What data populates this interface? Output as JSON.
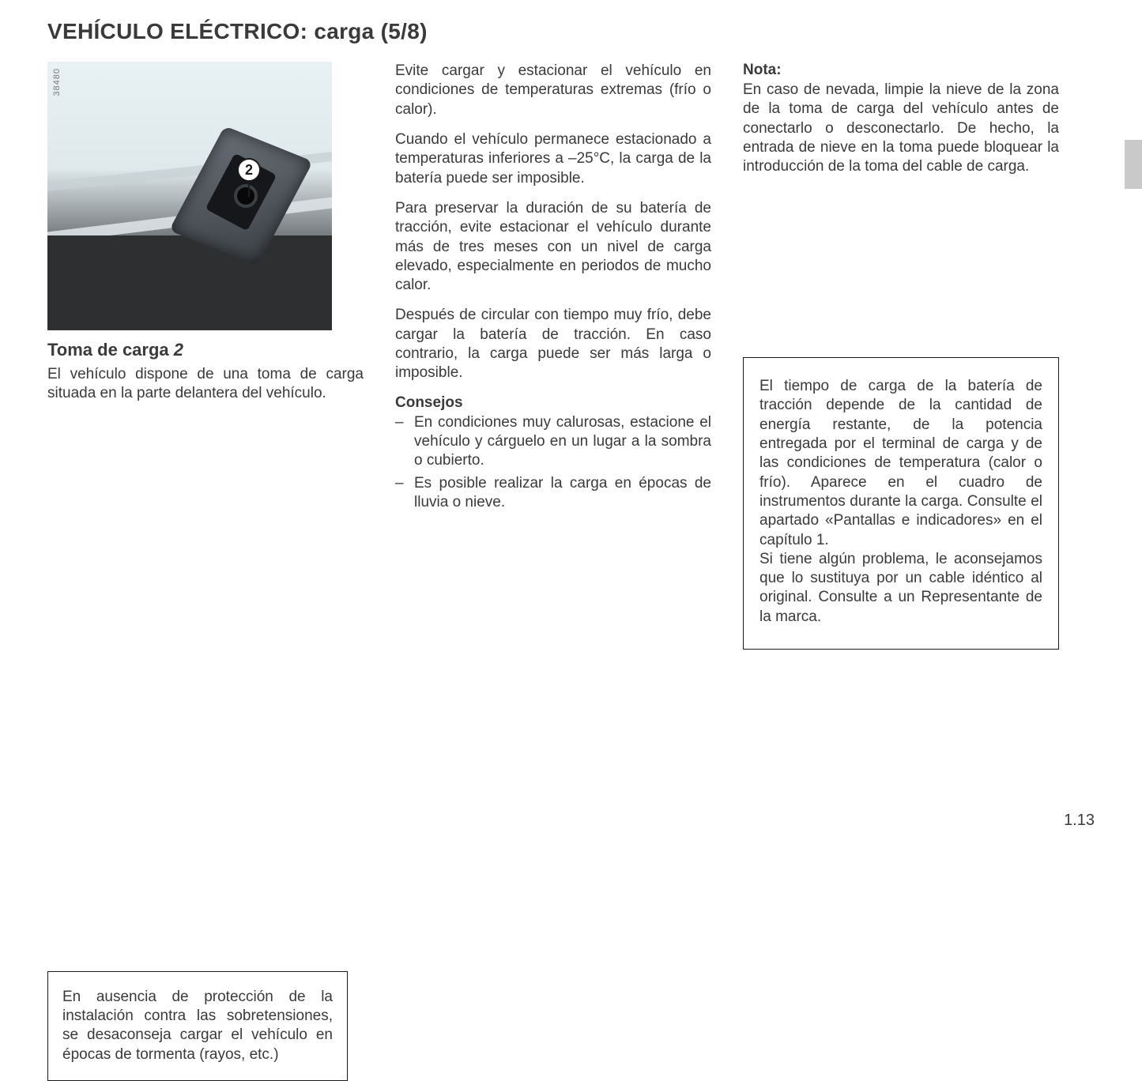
{
  "page": {
    "title": "VEHÍCULO ELÉCTRICO: carga (5/8)",
    "page_number": "1.13",
    "tab_color": "#c9c9c9"
  },
  "figure": {
    "image_id": "38480",
    "callout_label": "2"
  },
  "column1": {
    "heading_prefix": "Toma de carga ",
    "heading_ref": "2",
    "intro": "El vehículo dispone de una toma de carga situada en la parte delantera del vehículo.",
    "warning_box": "En ausencia de protección de la instalación contra las sobretensiones, se desaconseja cargar el vehículo en épocas de tormenta (rayos, etc.)"
  },
  "column2": {
    "p1": "Evite cargar y estacionar el vehículo en condiciones de temperaturas extremas (frío o calor).",
    "p2": "Cuando el vehículo permanece estacionado a temperaturas inferiores a –25°C, la carga de la batería puede ser imposible.",
    "p3": "Para preservar la duración de su batería de tracción, evite estacionar el vehículo durante más de tres meses con un nivel de carga elevado, especialmente en periodos de mucho calor.",
    "p4": "Después de circular con tiempo muy frío, debe cargar la batería de tracción. En caso contrario, la carga puede ser más larga o imposible.",
    "tips_heading": "Consejos",
    "tips": [
      "En condiciones muy calurosas, estacione el vehículo y cárguelo en un lugar a la sombra o cubierto.",
      "Es posible realizar la carga en épocas de lluvia o nieve."
    ]
  },
  "column3": {
    "note_heading": "Nota:",
    "note_body": "En caso de nevada, limpie la nieve de la zona de la toma de carga del vehículo antes de conectarlo o desconectarlo. De hecho, la entrada de nieve en la toma puede bloquear la introducción de la toma del cable de carga.",
    "info_box_p1": "El tiempo de carga de la batería de tracción depende de la cantidad de energía restante, de la potencia entregada por el terminal de carga y de las condiciones de temperatura (calor o frío). Aparece en el cuadro de instrumentos durante la carga. Consulte el apartado «Pantallas e indicadores» en el capítulo 1.",
    "info_box_p2": "Si tiene algún problema, le aconsejamos que lo sustituya por un cable idéntico al original. Consulte a un Representante de la marca."
  },
  "style": {
    "text_color": "#3a3a3a",
    "border_color": "#1a1a1a",
    "background": "#ffffff",
    "title_fontsize": 28,
    "body_fontsize": 19,
    "heading_fontsize": 22
  }
}
